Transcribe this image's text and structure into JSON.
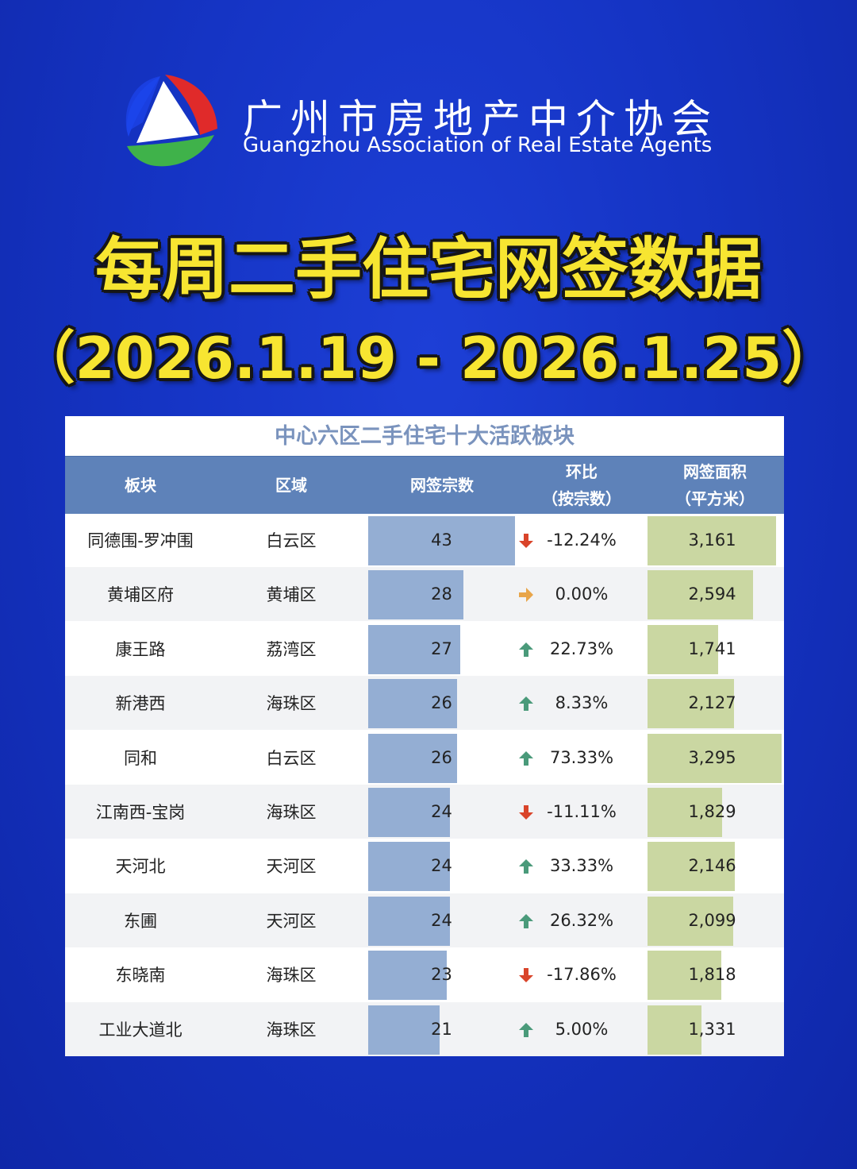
{
  "header": {
    "org_name_cn": "广州市房地产中介协会",
    "org_name_en": "Guangzhou Association of Real Estate Agents",
    "logo_icon": "tri-color-triangle-logo-icon"
  },
  "title": "每周二手住宅网签数据",
  "date_range": "（2026.1.19 - 2026.1.25）",
  "colors": {
    "background": "#1534c4",
    "title_yellow": "#f7e531",
    "header_blue": "#5e82b9",
    "count_bar": "#94aed3",
    "area_bar": "#cad7a2",
    "arrow_up": "#4a9a7a",
    "arrow_down": "#d9442a",
    "arrow_flat": "#e8a54a"
  },
  "chart_data": {
    "type": "table",
    "title": "中心六区二手住宅十大活跃板块",
    "columns": [
      "板块",
      "区域",
      "网签宗数",
      "环比（按宗数）",
      "网签面积（平方米）"
    ],
    "header_lines": {
      "col1": "板块",
      "col2": "区域",
      "col3": "网签宗数",
      "col4_line1": "环比",
      "col4_line2": "（按宗数）",
      "col5_line1": "网签面积",
      "col5_line2": "（平方米）"
    },
    "count_bar_max": 43,
    "area_bar_max": 3295,
    "rows": [
      {
        "block": "同德围-罗冲围",
        "district": "白云区",
        "count": 43,
        "change": "-12.24%",
        "trend": "down",
        "area": "3,161",
        "area_value": 3161
      },
      {
        "block": "黄埔区府",
        "district": "黄埔区",
        "count": 28,
        "change": "0.00%",
        "trend": "flat",
        "area": "2,594",
        "area_value": 2594
      },
      {
        "block": "康王路",
        "district": "荔湾区",
        "count": 27,
        "change": "22.73%",
        "trend": "up",
        "area": "1,741",
        "area_value": 1741
      },
      {
        "block": "新港西",
        "district": "海珠区",
        "count": 26,
        "change": "8.33%",
        "trend": "up",
        "area": "2,127",
        "area_value": 2127
      },
      {
        "block": "同和",
        "district": "白云区",
        "count": 26,
        "change": "73.33%",
        "trend": "up",
        "area": "3,295",
        "area_value": 3295
      },
      {
        "block": "江南西-宝岗",
        "district": "海珠区",
        "count": 24,
        "change": "-11.11%",
        "trend": "down",
        "area": "1,829",
        "area_value": 1829
      },
      {
        "block": "天河北",
        "district": "天河区",
        "count": 24,
        "change": "33.33%",
        "trend": "up",
        "area": "2,146",
        "area_value": 2146
      },
      {
        "block": "东圃",
        "district": "天河区",
        "count": 24,
        "change": "26.32%",
        "trend": "up",
        "area": "2,099",
        "area_value": 2099
      },
      {
        "block": "东晓南",
        "district": "海珠区",
        "count": 23,
        "change": "-17.86%",
        "trend": "down",
        "area": "1,818",
        "area_value": 1818
      },
      {
        "block": "工业大道北",
        "district": "海珠区",
        "count": 21,
        "change": "5.00%",
        "trend": "up",
        "area": "1,331",
        "area_value": 1331
      }
    ]
  }
}
